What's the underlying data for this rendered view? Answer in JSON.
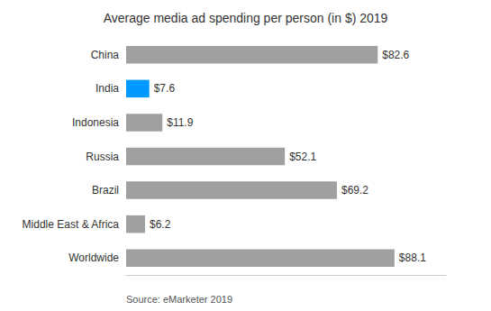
{
  "chart_data": {
    "type": "bar",
    "orientation": "horizontal",
    "title": "Average media ad spending per person (in $) 2019",
    "annotation": "Source: eMarketer 2019",
    "categories": [
      "China",
      "India",
      "Indonesia",
      "Russia",
      "Brazil",
      "Middle East & Africa",
      "Worldwide"
    ],
    "values": [
      82.6,
      7.6,
      11.9,
      52.1,
      69.2,
      6.2,
      88.1
    ],
    "value_labels": [
      "$82.6",
      "$7.6",
      "$11.9",
      "$52.1",
      "$69.2",
      "$6.2",
      "$88.1"
    ],
    "colors": [
      "#a0a0a0",
      "#0099ff",
      "#a0a0a0",
      "#a0a0a0",
      "#a0a0a0",
      "#a0a0a0",
      "#a0a0a0"
    ],
    "xlim": [
      0,
      105
    ],
    "data_labels": true,
    "tick_labels": "y",
    "grid": false
  }
}
